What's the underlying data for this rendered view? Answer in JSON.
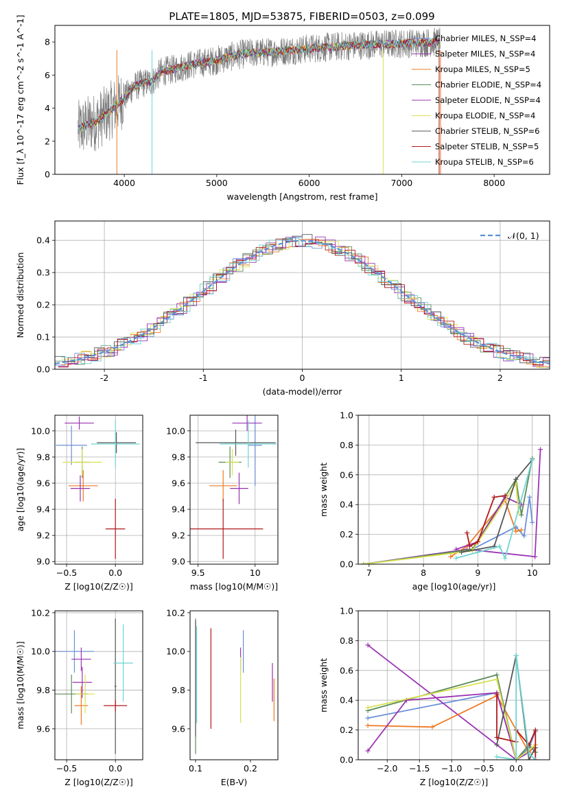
{
  "title": "PLATE=1805, MJD=53875, FIBERID=0503, z=0.099",
  "colors": [
    "#6a8fd8",
    "#9a35b5",
    "#ee7a22",
    "#5a8a5a",
    "#9b30b0",
    "#d8e050",
    "#555555",
    "#b01818",
    "#6fd3d3"
  ],
  "chart_data": [
    {
      "id": "spectrum",
      "type": "line",
      "xlabel": "wavelength [Angstrom, rest frame]",
      "ylabel": "Flux [f_λ 10^-17 erg cm^-2 s^-1 A^-1]",
      "xlim": [
        3250,
        8600
      ],
      "ylim": [
        0,
        9
      ],
      "xticks": [
        4000,
        5000,
        6000,
        7000,
        8000
      ],
      "yticks": [
        0,
        2,
        4,
        6,
        8
      ],
      "legend_placement": "right",
      "series": [
        {
          "name": "Chabrier MILES, N_SSP=4"
        },
        {
          "name": "Salpeter MILES, N_SSP=4"
        },
        {
          "name": "Kroupa MILES, N_SSP=5"
        },
        {
          "name": "Chabrier ELODIE, N_SSP=4"
        },
        {
          "name": "Salpeter ELODIE, N_SSP=4"
        },
        {
          "name": "Kroupa ELODIE, N_SSP=4"
        },
        {
          "name": "Chabrier STELIB, N_SSP=6"
        },
        {
          "name": "Salpeter STELIB, N_SSP=5"
        },
        {
          "name": "Kroupa STELIB, N_SSP=6"
        }
      ],
      "continuum": {
        "x": [
          3500,
          3600,
          3700,
          3800,
          3900,
          4000,
          4100,
          4200,
          4300,
          4400,
          4500,
          4700,
          5000,
          5300,
          5600,
          6000,
          6500,
          7000,
          7400
        ],
        "y": [
          2.7,
          3.0,
          3.2,
          3.6,
          4.1,
          4.6,
          5.3,
          5.5,
          5.6,
          6.2,
          6.3,
          6.6,
          6.9,
          7.3,
          7.4,
          7.6,
          7.8,
          7.9,
          8.0
        ]
      }
    },
    {
      "id": "residuals",
      "type": "step",
      "xlabel": "(data-model)/error",
      "ylabel": "Normed distribution",
      "xlim": [
        -2.5,
        2.5
      ],
      "ylim": [
        0,
        0.46
      ],
      "xticks": [
        -2,
        -1,
        0,
        1,
        2
      ],
      "yticks": [
        0.0,
        0.1,
        0.2,
        0.3,
        0.4
      ],
      "grid": true,
      "legend": "𝒩(0, 1)",
      "legend_placement": "top-right"
    },
    {
      "id": "age_vs_Z",
      "type": "errorbar",
      "xlabel": "Z [log10(Z/Z☉)]",
      "ylabel": "age [log10(age/yr)]",
      "xlim": [
        -0.62,
        0.28
      ],
      "ylim": [
        8.98,
        10.12
      ],
      "xticks": [
        -0.5,
        0.0
      ],
      "xticklabels": [
        "−0.5",
        "0.0"
      ],
      "yticks": [
        9.0,
        9.2,
        9.4,
        9.6,
        9.8,
        10.0
      ],
      "grid": true,
      "points": [
        {
          "x": -0.45,
          "y": 9.89,
          "xerr": 0.16,
          "yerr": 0.15
        },
        {
          "x": -0.37,
          "y": 10.06,
          "xerr": 0.15,
          "yerr": 0.05
        },
        {
          "x": -0.33,
          "y": 9.58,
          "xerr": 0.15,
          "yerr": 0.12
        },
        {
          "x": -0.34,
          "y": 9.76,
          "xerr": 0.08,
          "yerr": 0.12
        },
        {
          "x": -0.36,
          "y": 9.56,
          "xerr": 0.1,
          "yerr": 0.1
        },
        {
          "x": -0.34,
          "y": 9.76,
          "xerr": 0.2,
          "yerr": 0.1
        },
        {
          "x": 0.01,
          "y": 9.91,
          "xerr": 0.2,
          "yerr": 0.08
        },
        {
          "x": 0.0,
          "y": 9.25,
          "xerr": 0.1,
          "yerr": 0.23
        },
        {
          "x": 0.0,
          "y": 9.9,
          "xerr": 0.25,
          "yerr": 0.18
        }
      ]
    },
    {
      "id": "age_vs_mass",
      "type": "errorbar",
      "xlabel": "mass [log10(M/M☉)]",
      "ylabel": "",
      "xlim": [
        9.43,
        10.2
      ],
      "ylim": [
        8.98,
        10.12
      ],
      "xticks": [
        9.5,
        10.0
      ],
      "yticks": [
        9.0,
        9.2,
        9.4,
        9.6,
        9.8,
        10.0
      ],
      "grid": true,
      "points": [
        {
          "x": 10.0,
          "y": 9.89,
          "xerr": 0.06,
          "yerr": 0.31
        },
        {
          "x": 9.93,
          "y": 10.06,
          "xerr": 0.13,
          "yerr": 0.06
        },
        {
          "x": 9.72,
          "y": 9.58,
          "xerr": 0.12,
          "yerr": 0.12
        },
        {
          "x": 9.78,
          "y": 9.76,
          "xerr": 0.1,
          "yerr": 0.12
        },
        {
          "x": 9.86,
          "y": 9.56,
          "xerr": 0.08,
          "yerr": 0.12
        },
        {
          "x": 9.8,
          "y": 9.76,
          "xerr": 0.06,
          "yerr": 0.1
        },
        {
          "x": 9.83,
          "y": 9.91,
          "xerr": 0.35,
          "yerr": 0.1
        },
        {
          "x": 9.72,
          "y": 9.25,
          "xerr": 0.35,
          "yerr": 0.23
        },
        {
          "x": 9.94,
          "y": 9.9,
          "xerr": 0.25,
          "yerr": 0.18
        }
      ]
    },
    {
      "id": "massweight_vs_age",
      "type": "line",
      "xlabel": "age [log10(age/yr)]",
      "ylabel": "mass weight",
      "xlim": [
        6.8,
        10.32
      ],
      "ylim": [
        0,
        1.0
      ],
      "xticks": [
        7,
        8,
        9,
        10
      ],
      "yticks": [
        0.0,
        0.2,
        0.4,
        0.6,
        0.8,
        1.0
      ],
      "grid": true,
      "series": [
        {
          "x": [
            6.9,
            8.9,
            9.7,
            9.85,
            9.95,
            10.0
          ],
          "y": [
            0.0,
            0.1,
            0.25,
            0.19,
            0.45,
            0.28
          ]
        },
        {
          "x": [
            6.9,
            8.8,
            10.05,
            10.15
          ],
          "y": [
            0.0,
            0.1,
            0.05,
            0.77
          ]
        },
        {
          "x": [
            8.5,
            8.8,
            9.5,
            9.7,
            9.8
          ],
          "y": [
            0.05,
            0.12,
            0.43,
            0.22,
            0.23
          ]
        },
        {
          "x": [
            6.9,
            8.9,
            9.7,
            9.8,
            10.0
          ],
          "y": [
            0.0,
            0.1,
            0.57,
            0.33,
            0.71
          ]
        },
        {
          "x": [
            8.6,
            9.0,
            9.5,
            9.8
          ],
          "y": [
            0.1,
            0.15,
            0.45,
            0.4
          ]
        },
        {
          "x": [
            6.9,
            8.9,
            9.7,
            9.75
          ],
          "y": [
            0.0,
            0.09,
            0.54,
            0.35
          ]
        },
        {
          "x": [
            8.7,
            9.3,
            9.7,
            10.0
          ],
          "y": [
            0.08,
            0.12,
            0.57,
            0.7
          ]
        },
        {
          "x": [
            8.8,
            8.85,
            9.0,
            9.3,
            9.5
          ],
          "y": [
            0.21,
            0.12,
            0.15,
            0.45,
            0.46
          ]
        },
        {
          "x": [
            8.6,
            9.0,
            9.4,
            9.5,
            10.0
          ],
          "y": [
            0.04,
            0.08,
            0.12,
            0.04,
            0.7
          ]
        }
      ]
    },
    {
      "id": "mass_vs_Z",
      "type": "errorbar",
      "xlabel": "Z [log10(Z/Z☉)]",
      "ylabel": "mass [log10(M/M☉)]",
      "xlim": [
        -0.62,
        0.28
      ],
      "ylim": [
        9.44,
        10.21
      ],
      "xticks": [
        -0.5,
        0.0
      ],
      "xticklabels": [
        "−0.5",
        "0.0"
      ],
      "yticks": [
        9.6,
        9.8,
        10.0,
        10.2
      ],
      "grid": true,
      "points": [
        {
          "x": -0.42,
          "y": 10.0,
          "xerr": 0.2,
          "yerr": 0.11
        },
        {
          "x": -0.35,
          "y": 9.96,
          "xerr": 0.1,
          "yerr": 0.06
        },
        {
          "x": -0.35,
          "y": 9.72,
          "xerr": 0.07,
          "yerr": 0.1
        },
        {
          "x": -0.45,
          "y": 9.78,
          "xerr": 0.17,
          "yerr": 0.1
        },
        {
          "x": -0.34,
          "y": 9.84,
          "xerr": 0.1,
          "yerr": 0.08
        },
        {
          "x": -0.31,
          "y": 9.78,
          "xerr": 0.1,
          "yerr": 0.1
        },
        {
          "x": 0.0,
          "y": 9.82,
          "xerr": 0.01,
          "yerr": 0.35
        },
        {
          "x": 0.0,
          "y": 9.72,
          "xerr": 0.12,
          "yerr": 0.03
        },
        {
          "x": 0.08,
          "y": 9.94,
          "xerr": 0.1,
          "yerr": 0.2
        }
      ]
    },
    {
      "id": "mass_vs_EBV",
      "type": "errorbar",
      "xlabel": "E(B-V)",
      "ylabel": "",
      "xlim": [
        0.09,
        0.25
      ],
      "ylim": [
        9.44,
        10.21
      ],
      "xticks": [
        0.1,
        0.2
      ],
      "yticks": [
        9.6,
        9.8,
        10.0,
        10.2
      ],
      "grid": false,
      "points": [
        {
          "x": 0.187,
          "y": 10.0,
          "yerr": 0.11
        },
        {
          "x": 0.182,
          "y": 9.96,
          "yerr": 0.06
        },
        {
          "x": 0.243,
          "y": 9.75,
          "yerr": 0.11
        },
        {
          "x": 0.1,
          "y": 9.82,
          "yerr": 0.35
        },
        {
          "x": 0.24,
          "y": 9.84,
          "yerr": 0.1
        },
        {
          "x": 0.182,
          "y": 9.8,
          "yerr": 0.17
        },
        {
          "x": 0.1,
          "y": 9.86,
          "yerr": 0.3
        },
        {
          "x": 0.128,
          "y": 9.86,
          "yerr": 0.26
        },
        {
          "x": 0.102,
          "y": 9.88,
          "yerr": 0.25
        }
      ]
    },
    {
      "id": "massweight_vs_Z",
      "type": "line",
      "xlabel": "Z [log10(Z/Z☉)]",
      "ylabel": "mass weight",
      "xlim": [
        -2.45,
        0.52
      ],
      "ylim": [
        0,
        1.0
      ],
      "xticks": [
        -2.0,
        -1.5,
        -1.0,
        -0.5,
        0.0
      ],
      "xticklabels": [
        "−2.0",
        "−1.5",
        "−1.0",
        "−0.5",
        "0.0"
      ],
      "yticks": [
        0.0,
        0.2,
        0.4,
        0.6,
        0.8,
        1.0
      ],
      "grid": true,
      "series": [
        {
          "x": [
            -2.3,
            -0.3,
            0.0,
            0.2,
            0.3
          ],
          "y": [
            0.28,
            0.45,
            0.0,
            0.08,
            0.19
          ]
        },
        {
          "x": [
            -2.3,
            0.0,
            0.2,
            0.3
          ],
          "y": [
            0.77,
            0.0,
            0.05,
            0.1
          ]
        },
        {
          "x": [
            -2.3,
            -1.3,
            -0.3,
            0.2,
            0.3
          ],
          "y": [
            0.23,
            0.22,
            0.43,
            0.05,
            0.1
          ]
        },
        {
          "x": [
            -2.3,
            -0.3,
            0.0,
            0.2,
            0.3
          ],
          "y": [
            0.33,
            0.57,
            0.0,
            0.1,
            0.05
          ]
        },
        {
          "x": [
            -2.3,
            -1.7,
            -0.3,
            0.0
          ],
          "y": [
            0.06,
            0.4,
            0.45,
            0.0
          ]
        },
        {
          "x": [
            -2.3,
            -0.3,
            0.0,
            0.3
          ],
          "y": [
            0.35,
            0.54,
            0.0,
            0.1
          ]
        },
        {
          "x": [
            -0.3,
            0.0,
            0.2,
            0.3
          ],
          "y": [
            0.1,
            0.7,
            0.0,
            0.08
          ]
        },
        {
          "x": [
            -0.3,
            -0.3,
            0.0,
            0.0,
            0.2,
            0.3,
            0.3
          ],
          "y": [
            0.44,
            0.15,
            0.12,
            0.2,
            0.1,
            0.2,
            0.0
          ]
        },
        {
          "x": [
            -0.3,
            0.0,
            0.0,
            0.2,
            0.3
          ],
          "y": [
            0.02,
            0.0,
            0.7,
            0.04,
            0.0
          ]
        }
      ]
    }
  ]
}
